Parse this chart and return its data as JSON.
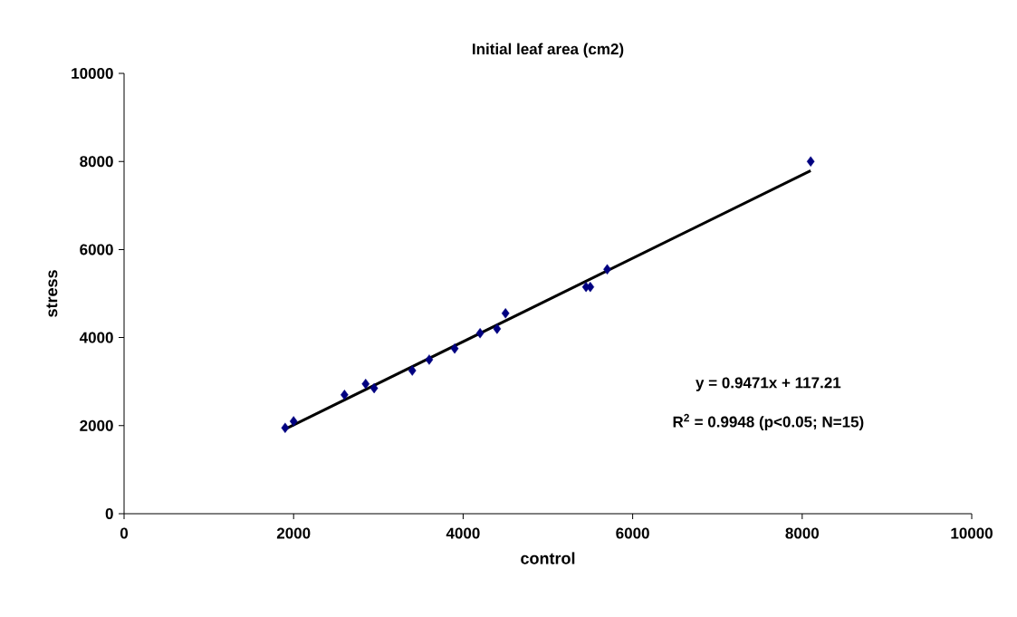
{
  "chart_data": {
    "type": "scatter",
    "title": "Initial leaf area (cm2)",
    "xlabel": "control",
    "ylabel": "stress",
    "xlim": [
      0,
      10000
    ],
    "ylim": [
      0,
      10000
    ],
    "xticks": [
      0,
      2000,
      4000,
      6000,
      8000,
      10000
    ],
    "yticks": [
      0,
      2000,
      4000,
      6000,
      8000,
      10000
    ],
    "grid": false,
    "marker": "diamond",
    "series": [
      {
        "color": "#000080",
        "x": [
          1900,
          2000,
          2600,
          2850,
          2950,
          3400,
          3600,
          3900,
          4200,
          4400,
          4500,
          5450,
          5500,
          5700,
          8100
        ],
        "values": [
          1950,
          2100,
          2700,
          2950,
          2850,
          3250,
          3500,
          3750,
          4100,
          4200,
          4550,
          5150,
          5150,
          5550,
          8000
        ]
      },
      {
        "type": "line",
        "color": "#000000",
        "line_style": "solid",
        "marker": "none",
        "x": [
          1900,
          8100
        ],
        "values": [
          1920,
          7790
        ]
      }
    ],
    "annotations": [
      "y = 0.9471x + 117.21",
      "R$^{2}$ = 0.9948 (p<0.05; N=15)"
    ]
  }
}
